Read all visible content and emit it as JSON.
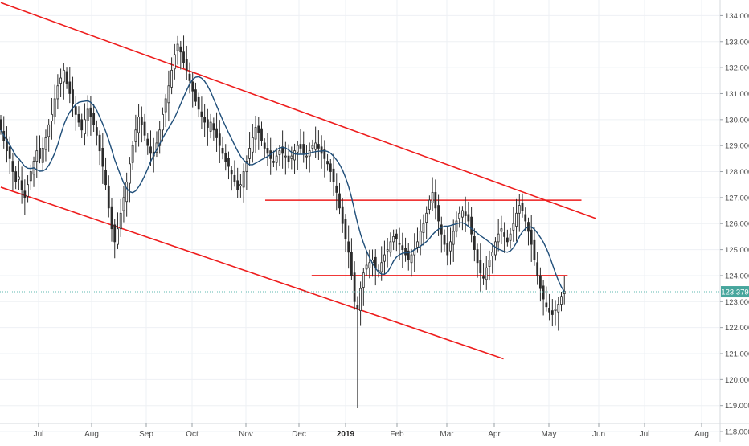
{
  "chart_data": {
    "type": "candlestick",
    "grid": true,
    "colors": {
      "background": "#ffffff",
      "grid": "#eef0f4",
      "candle": "#2b2b2b",
      "moving_average": "#1f4e79",
      "trendline": "#ee1c1c",
      "last_price_line": "#5fb8b0",
      "last_price_label_bg": "#47a69d",
      "last_price_label_text": "#ffffff"
    },
    "x_axis": {
      "ticks": [
        "Jul",
        "Aug",
        "Sep",
        "Oct",
        "Nov",
        "Dec",
        "2019",
        "Feb",
        "Mar",
        "Apr",
        "May",
        "Jun",
        "Jul",
        "Aug"
      ],
      "major_ticks": [
        "2019"
      ]
    },
    "y_axis": {
      "position": "right",
      "range": [
        117.6,
        134.6
      ],
      "ticks": [
        "118.000",
        "119.000",
        "120.000",
        "121.000",
        "122.000",
        "123.000",
        "124.000",
        "125.000",
        "126.000",
        "127.000",
        "128.000",
        "129.000",
        "130.000",
        "131.000",
        "132.000",
        "133.000",
        "134.000"
      ]
    },
    "last_price": {
      "value": 123.379,
      "label": "123.379"
    },
    "series": [
      {
        "type": "ohlc-candles",
        "closes": [
          129.6,
          129.2,
          128.8,
          128.5,
          128.0,
          127.6,
          127.8,
          127.3,
          127.0,
          127.5,
          128.0,
          128.4,
          128.8,
          128.5,
          128.9,
          129.3,
          129.8,
          130.2,
          130.8,
          131.3,
          131.6,
          131.9,
          131.4,
          131.0,
          130.6,
          130.2,
          129.9,
          129.6,
          130.0,
          130.4,
          130.1,
          129.8,
          129.4,
          128.8,
          128.2,
          127.5,
          126.6,
          125.8,
          125.3,
          125.8,
          126.4,
          127.0,
          127.6,
          128.3,
          129.0,
          129.6,
          130.1,
          129.8,
          129.4,
          129.0,
          128.7,
          128.6,
          129.1,
          129.6,
          130.2,
          130.8,
          131.3,
          131.9,
          132.5,
          132.9,
          132.6,
          132.2,
          131.9,
          131.5,
          131.1,
          130.7,
          130.4,
          130.1,
          129.9,
          129.7,
          129.9,
          129.6,
          129.3,
          129.0,
          128.7,
          128.4,
          128.2,
          127.9,
          127.6,
          127.3,
          127.5,
          128.0,
          128.4,
          128.9,
          129.3,
          129.7,
          129.5,
          129.2,
          128.9,
          128.7,
          128.5,
          128.4,
          128.6,
          128.8,
          128.7,
          128.6,
          128.4,
          128.6,
          128.8,
          129.0,
          128.9,
          128.7,
          128.6,
          128.8,
          129.0,
          129.1,
          128.9,
          128.7,
          128.5,
          128.3,
          128.0,
          127.6,
          127.2,
          126.6,
          126.0,
          125.4,
          124.9,
          124.0,
          123.0,
          122.7,
          123.5,
          124.1,
          124.4,
          124.5,
          124.6,
          124.3,
          124.2,
          124.5,
          124.8,
          125.0,
          125.3,
          125.5,
          125.4,
          125.2,
          125.0,
          124.8,
          124.6,
          124.8,
          125.0,
          125.3,
          125.7,
          126.0,
          126.4,
          126.9,
          127.2,
          126.6,
          126.1,
          125.6,
          125.2,
          124.8,
          125.3,
          125.7,
          126.1,
          126.4,
          126.5,
          126.3,
          126.1,
          125.6,
          125.0,
          124.5,
          124.1,
          123.9,
          124.3,
          124.6,
          124.9,
          125.3,
          125.6,
          125.8,
          125.5,
          125.3,
          125.6,
          126.0,
          126.4,
          126.7,
          126.5,
          126.1,
          125.7,
          125.2,
          124.6,
          124.0,
          123.5,
          123.1,
          122.8,
          122.6,
          122.5,
          122.7,
          122.9,
          123.2,
          123.4
        ]
      },
      {
        "type": "line",
        "kind": "moving-average"
      }
    ],
    "annotations": [
      {
        "type": "trendline",
        "from": [
          0,
          134.5
        ],
        "to": [
          198.4,
          126.2
        ]
      },
      {
        "type": "trendline",
        "from": [
          0,
          127.4
        ],
        "to": [
          167.7,
          120.8
        ]
      },
      {
        "type": "trendline",
        "from": [
          88.2,
          126.9
        ],
        "to": [
          193.7,
          126.9
        ]
      },
      {
        "type": "trendline",
        "from": [
          103.7,
          124.0
        ],
        "to": [
          189.1,
          124.0
        ]
      }
    ]
  }
}
